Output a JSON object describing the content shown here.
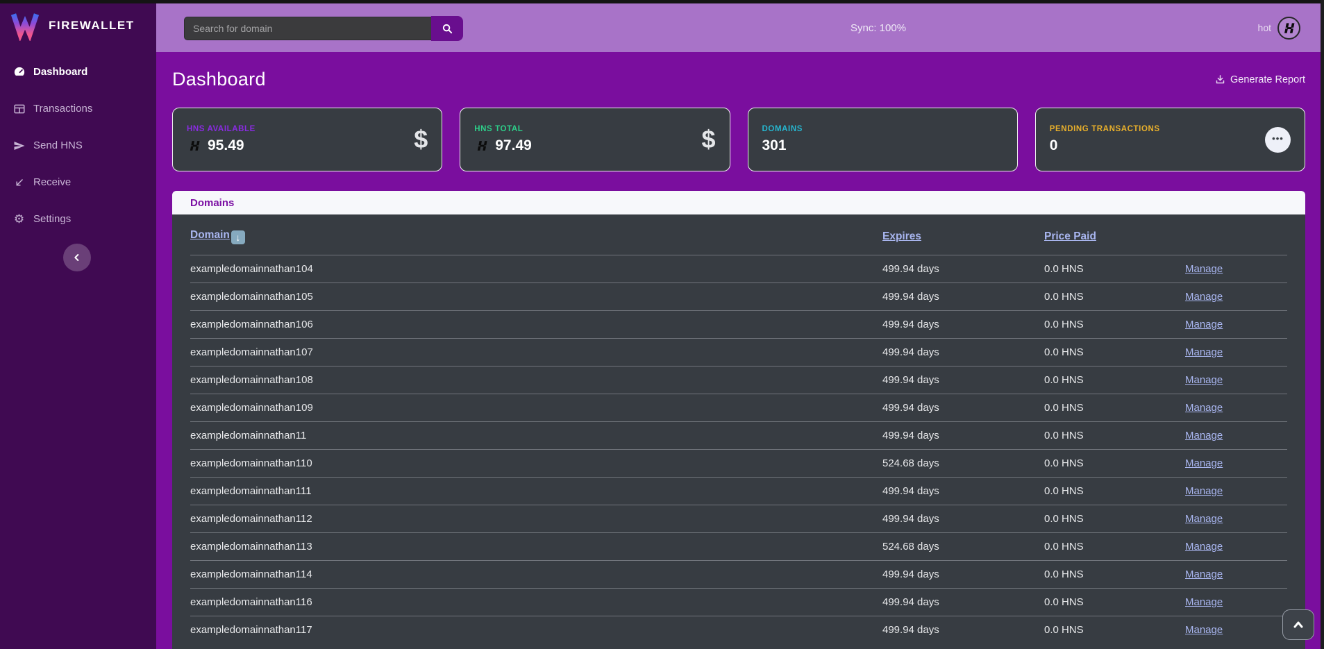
{
  "brand": {
    "name": "FIREWALLET",
    "logo_icon": "firewallet-w-logo"
  },
  "topbar": {
    "search": {
      "placeholder": "Search for domain",
      "value": "",
      "button_icon": "search-icon"
    },
    "sync_status": "Sync: 100%",
    "wallet_name": "hot",
    "wallet_icon": "handshake-logo"
  },
  "sidebar": {
    "items": [
      {
        "label": "Dashboard",
        "icon": "gauge-icon",
        "active": true
      },
      {
        "label": "Transactions",
        "icon": "table-icon",
        "active": false
      },
      {
        "label": "Send HNS",
        "icon": "send-icon",
        "active": false
      },
      {
        "label": "Receive",
        "icon": "receive-arrow-icon",
        "active": false
      },
      {
        "label": "Settings",
        "icon": "gear-icon",
        "active": false
      }
    ],
    "collapse_icon": "chevron-left-icon"
  },
  "page": {
    "title": "Dashboard",
    "generate_report": "Generate Report"
  },
  "stat_cards": [
    {
      "label": "HNS AVAILABLE",
      "value": "95.49",
      "currency_icon": "hns-logo",
      "right_icon": "dollar-sign"
    },
    {
      "label": "HNS TOTAL",
      "value": "97.49",
      "currency_icon": "hns-logo",
      "right_icon": "dollar-sign"
    },
    {
      "label": "DOMAINS",
      "value": "301"
    },
    {
      "label": "PENDING TRANSACTIONS",
      "value": "0",
      "right_icon": "ellipsis"
    }
  ],
  "domains": {
    "panel_title": "Domains",
    "col_domain": "Domain",
    "sort_arrow": "⬇",
    "col_expires": "Expires",
    "col_price": "Price Paid",
    "manage_label": "Manage",
    "rows": [
      {
        "domain": "exampledomainnathan104",
        "expires": "499.94 days",
        "price": "0.0 HNS"
      },
      {
        "domain": "exampledomainnathan105",
        "expires": "499.94 days",
        "price": "0.0 HNS"
      },
      {
        "domain": "exampledomainnathan106",
        "expires": "499.94 days",
        "price": "0.0 HNS"
      },
      {
        "domain": "exampledomainnathan107",
        "expires": "499.94 days",
        "price": "0.0 HNS"
      },
      {
        "domain": "exampledomainnathan108",
        "expires": "499.94 days",
        "price": "0.0 HNS"
      },
      {
        "domain": "exampledomainnathan109",
        "expires": "499.94 days",
        "price": "0.0 HNS"
      },
      {
        "domain": "exampledomainnathan11",
        "expires": "499.94 days",
        "price": "0.0 HNS"
      },
      {
        "domain": "exampledomainnathan110",
        "expires": "524.68 days",
        "price": "0.0 HNS"
      },
      {
        "domain": "exampledomainnathan111",
        "expires": "499.94 days",
        "price": "0.0 HNS"
      },
      {
        "domain": "exampledomainnathan112",
        "expires": "499.94 days",
        "price": "0.0 HNS"
      },
      {
        "domain": "exampledomainnathan113",
        "expires": "524.68 days",
        "price": "0.0 HNS"
      },
      {
        "domain": "exampledomainnathan114",
        "expires": "499.94 days",
        "price": "0.0 HNS"
      },
      {
        "domain": "exampledomainnathan116",
        "expires": "499.94 days",
        "price": "0.0 HNS"
      },
      {
        "domain": "exampledomainnathan117",
        "expires": "499.94 days",
        "price": "0.0 HNS"
      }
    ]
  },
  "colors": {
    "sidebar_bg": "#400a52",
    "topbar_bg": "#a873c8",
    "main_bg": "#7a0e9e",
    "card_bg": "#373c42",
    "hns_available_label": "#8a2be2",
    "hns_total_label": "#2dce89",
    "domains_label": "#26b6cf",
    "pending_label": "#e9b02b",
    "table_link": "#a9b6f0",
    "panel_title": "#7b0fa3"
  }
}
